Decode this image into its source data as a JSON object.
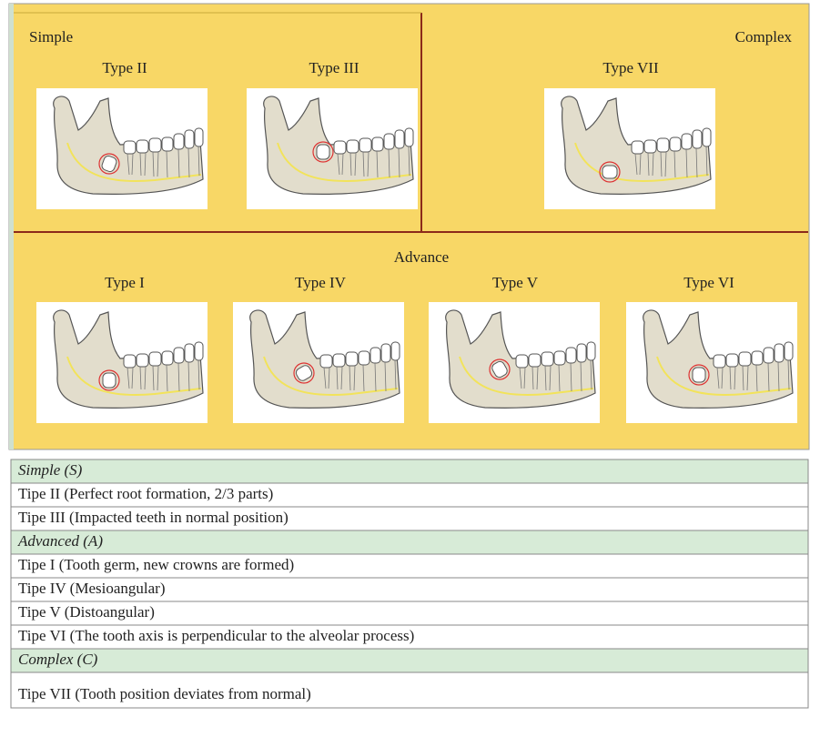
{
  "panels": {
    "simple": {
      "label": "Simple",
      "types": [
        "Type II",
        "Type III"
      ]
    },
    "complex": {
      "label": "Complex",
      "types": [
        "Type VII"
      ]
    },
    "advance": {
      "label": "Advance",
      "types": [
        "Type I",
        "Type IV",
        "Type V",
        "Type VI"
      ]
    }
  },
  "table": {
    "rows": [
      {
        "text": "Simple (S)",
        "group": true
      },
      {
        "text": "Tipe II (Perfect root formation, 2/3 parts)",
        "group": false
      },
      {
        "text": "Tipe III (Impacted teeth in normal position)",
        "group": false
      },
      {
        "text": "Advanced (A)",
        "group": true
      },
      {
        "text": "Tipe I (Tooth germ, new crowns are formed)",
        "group": false
      },
      {
        "text": "Tipe IV (Mesioangular)",
        "group": false
      },
      {
        "text": "Tipe V (Distoangular)",
        "group": false
      },
      {
        "text": "Tipe VI (The tooth axis is perpendicular to the alveolar process)",
        "group": false
      },
      {
        "text": "Complex (C)",
        "group": true
      },
      {
        "text": "Tipe VII (Tooth position deviates from normal)",
        "group": false
      }
    ]
  }
}
